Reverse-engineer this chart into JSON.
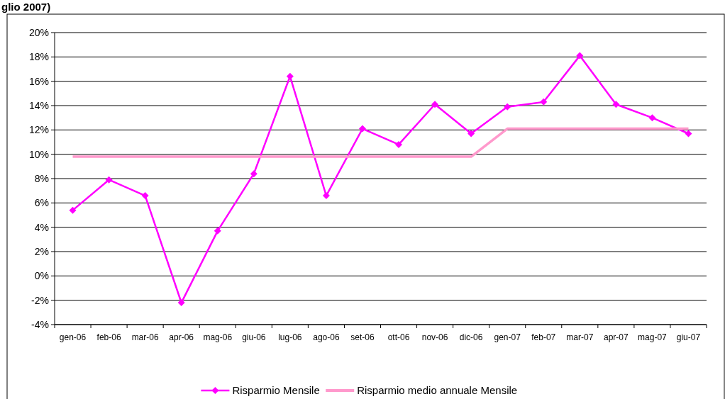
{
  "chart_data": {
    "type": "line",
    "title": "glio 2007)",
    "categories": [
      "gen-06",
      "feb-06",
      "mar-06",
      "apr-06",
      "mag-06",
      "giu-06",
      "lug-06",
      "ago-06",
      "set-06",
      "ott-06",
      "nov-06",
      "dic-06",
      "gen-07",
      "feb-07",
      "mar-07",
      "apr-07",
      "mag-07",
      "giu-07"
    ],
    "series": [
      {
        "name": "Risparmio Mensile",
        "color": "#ff00ff",
        "marker": "diamond",
        "values": [
          5.4,
          7.9,
          6.6,
          -2.2,
          3.7,
          8.4,
          16.4,
          6.6,
          12.1,
          10.8,
          14.1,
          11.7,
          13.9,
          14.3,
          18.1,
          14.1,
          13.0,
          11.7
        ]
      },
      {
        "name": "Risparmio medio annuale Mensile",
        "color": "#ff99cc",
        "marker": "none",
        "values": [
          9.8,
          9.8,
          9.8,
          9.8,
          9.8,
          9.8,
          9.8,
          9.8,
          9.8,
          9.8,
          9.8,
          9.8,
          12.1,
          12.1,
          12.1,
          12.1,
          12.1,
          12.1
        ]
      }
    ],
    "ylim": [
      -4,
      20
    ],
    "yticks": [
      {
        "value": -4,
        "label": "-4%"
      },
      {
        "value": -2,
        "label": "-2%"
      },
      {
        "value": 0,
        "label": "0%"
      },
      {
        "value": 2,
        "label": "2%"
      },
      {
        "value": 4,
        "label": "4%"
      },
      {
        "value": 6,
        "label": "6%"
      },
      {
        "value": 8,
        "label": "8%"
      },
      {
        "value": 10,
        "label": "10%"
      },
      {
        "value": 12,
        "label": "12%"
      },
      {
        "value": 14,
        "label": "14%"
      },
      {
        "value": 16,
        "label": "16%"
      },
      {
        "value": 18,
        "label": "18%"
      },
      {
        "value": 20,
        "label": "20%"
      }
    ],
    "grid": "y",
    "legend": "bottom",
    "line_style": "solid"
  }
}
